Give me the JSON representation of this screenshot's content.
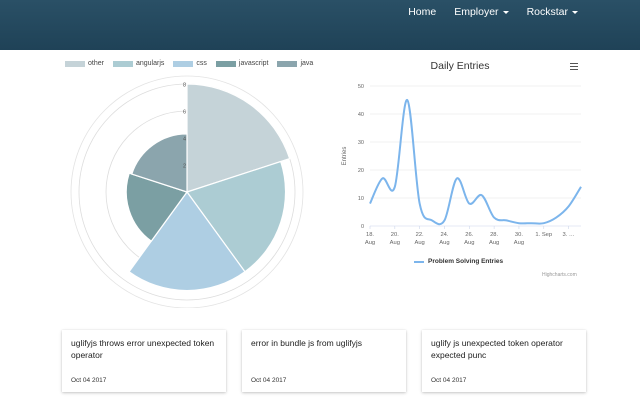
{
  "nav": {
    "items": [
      {
        "label": "Home",
        "dropdown": false
      },
      {
        "label": "Employer",
        "dropdown": true
      },
      {
        "label": "Rockstar",
        "dropdown": true
      }
    ]
  },
  "colors": {
    "header": "#244a60",
    "accent_line": "#7cb5ec"
  },
  "chart_data": [
    {
      "type": "pie",
      "variant": "polar-area",
      "title": "",
      "legend": {
        "placement": "top-left",
        "entries": [
          "other",
          "angularjs",
          "css",
          "javascript",
          "java"
        ]
      },
      "series": [
        {
          "name": "other",
          "value": 8,
          "color": "#c5d3d8"
        },
        {
          "name": "angularjs",
          "value": 7.3,
          "color": "#acccd3"
        },
        {
          "name": "css",
          "value": 7.3,
          "color": "#aecee3"
        },
        {
          "name": "javascript",
          "value": 4.5,
          "color": "#7b9fa3"
        },
        {
          "name": "java",
          "value": 4.3,
          "color": "#8ba5ad"
        }
      ],
      "radial_axis": {
        "max": 8,
        "ticks": [
          2,
          4,
          6,
          8
        ],
        "tick_labels": [
          "8",
          "6",
          "4",
          "2"
        ]
      }
    },
    {
      "type": "line",
      "title": "Daily Entries",
      "ylabel": "Entries",
      "xlabel": "",
      "ylim": [
        0,
        50
      ],
      "y_ticks": [
        0,
        10,
        20,
        30,
        40,
        50
      ],
      "x_tick_labels": [
        {
          "line1": "18.",
          "line2": "Aug"
        },
        {
          "line1": "20.",
          "line2": "Aug"
        },
        {
          "line1": "22.",
          "line2": "Aug"
        },
        {
          "line1": "24.",
          "line2": "Aug"
        },
        {
          "line1": "26.",
          "line2": "Aug"
        },
        {
          "line1": "28.",
          "line2": "Aug"
        },
        {
          "line1": "30.",
          "line2": "Aug"
        },
        {
          "line1": "1. Sep",
          "line2": ""
        },
        {
          "line1": "3. …",
          "line2": ""
        }
      ],
      "grid": true,
      "legend": {
        "placement": "bottom-center",
        "entries": [
          "Problem Solving Entries"
        ]
      },
      "credits": "Highcharts.com",
      "series": [
        {
          "name": "Problem Solving Entries",
          "color": "#7cb5ec",
          "x": [
            "2017-08-18",
            "2017-08-19",
            "2017-08-20",
            "2017-08-21",
            "2017-08-22",
            "2017-08-23",
            "2017-08-24",
            "2017-08-25",
            "2017-08-26",
            "2017-08-27",
            "2017-08-28",
            "2017-08-29",
            "2017-08-30",
            "2017-08-31",
            "2017-09-01",
            "2017-09-02",
            "2017-09-03",
            "2017-09-04"
          ],
          "values": [
            8,
            17,
            14,
            45,
            8,
            2,
            2,
            17,
            8,
            11,
            3,
            2,
            1,
            1,
            1,
            3,
            7,
            14
          ]
        }
      ]
    }
  ],
  "cards": [
    {
      "title": "uglifyjs throws error unexpected token operator",
      "date": "Oct 04 2017"
    },
    {
      "title": "error in bundle js from uglifyjs",
      "date": "Oct 04 2017"
    },
    {
      "title": "uglify js unexpected token operator expected punc",
      "date": "Oct 04 2017"
    }
  ]
}
